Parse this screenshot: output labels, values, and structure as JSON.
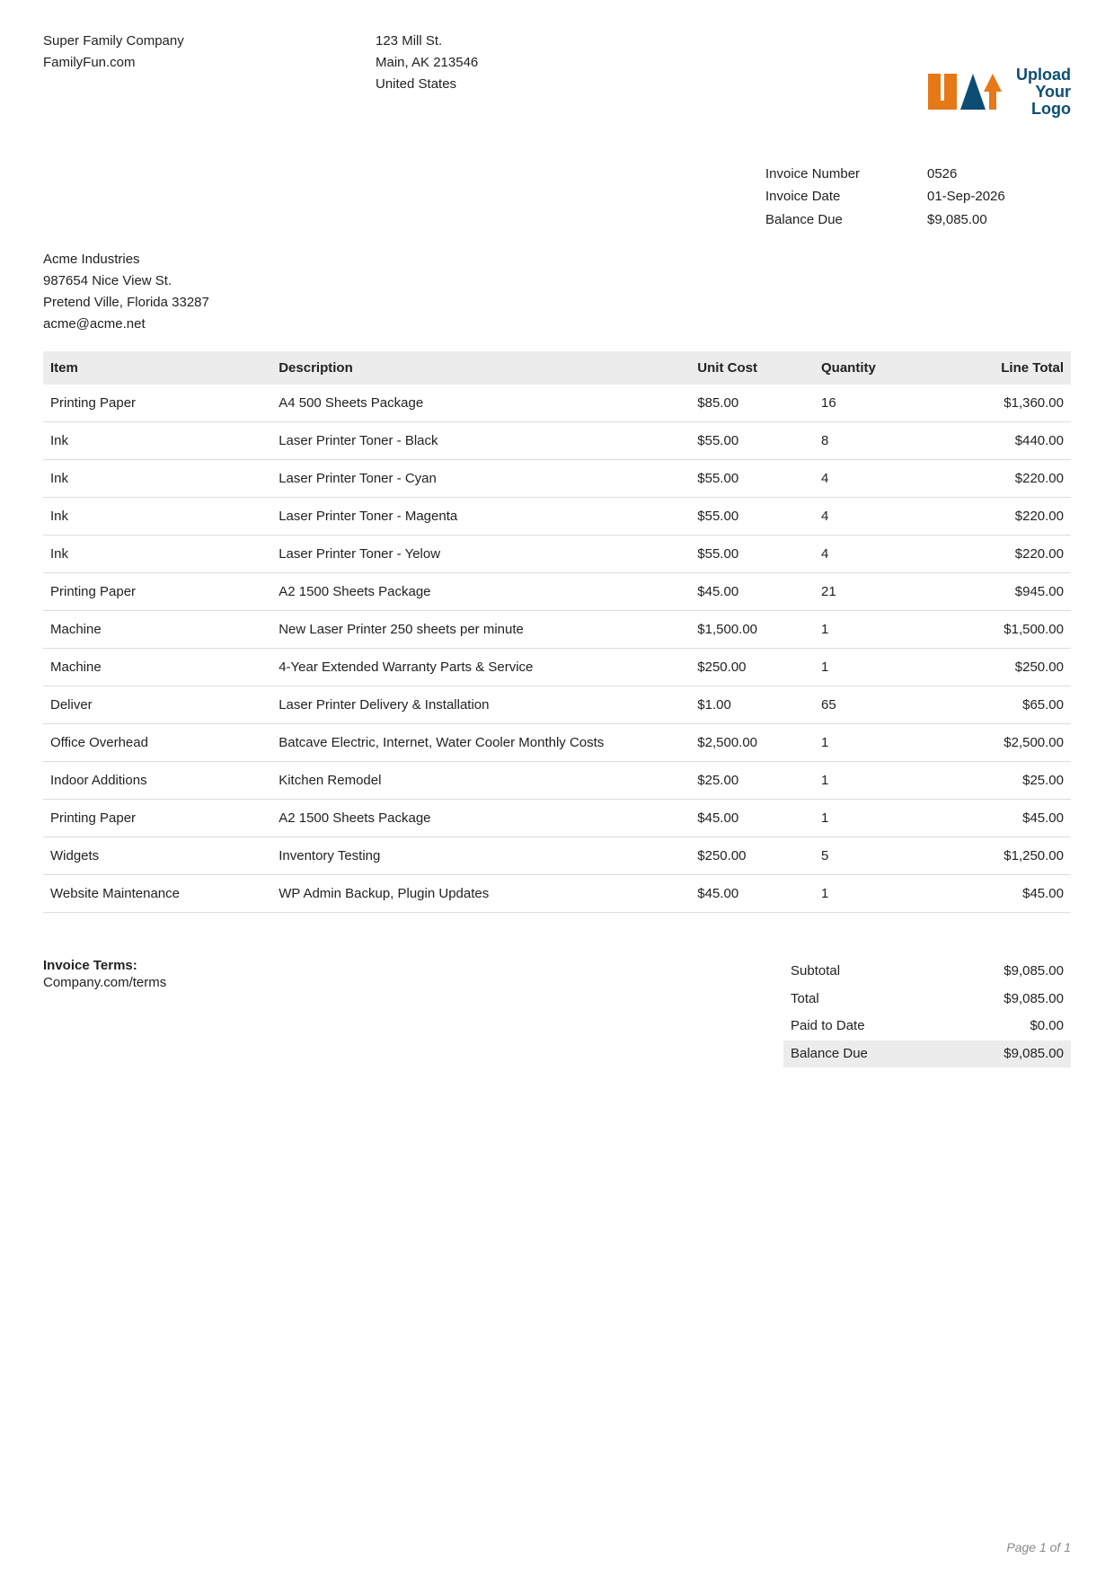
{
  "company": {
    "name": "Super Family Company",
    "website": "FamilyFun.com",
    "addr1": "123 Mill St.",
    "addr2": "Main, AK 213546",
    "country": "United States"
  },
  "logo": {
    "text1": "Upload",
    "text2": "Your",
    "text3": "Logo",
    "color_primary": "#e67817",
    "color_secondary": "#0d4d73"
  },
  "meta": {
    "invoice_number_label": "Invoice Number",
    "invoice_number": "0526",
    "invoice_date_label": "Invoice Date",
    "invoice_date": "01-Sep-2026",
    "balance_due_label": "Balance Due",
    "balance_due": "$9,085.00"
  },
  "billto": {
    "name": "Acme Industries",
    "addr1": "987654 Nice View St.",
    "addr2": "Pretend Ville, Florida 33287",
    "email": "acme@acme.net"
  },
  "table": {
    "headers": {
      "item": "Item",
      "description": "Description",
      "unit_cost": "Unit Cost",
      "quantity": "Quantity",
      "line_total": "Line Total"
    },
    "rows": [
      {
        "item": "Printing Paper",
        "desc": "A4 500 Sheets Package",
        "unit": "$85.00",
        "qty": "16",
        "total": "$1,360.00"
      },
      {
        "item": "Ink",
        "desc": "Laser Printer Toner - Black",
        "unit": "$55.00",
        "qty": "8",
        "total": "$440.00"
      },
      {
        "item": "Ink",
        "desc": "Laser Printer Toner - Cyan",
        "unit": "$55.00",
        "qty": "4",
        "total": "$220.00"
      },
      {
        "item": "Ink",
        "desc": "Laser Printer Toner - Magenta",
        "unit": "$55.00",
        "qty": "4",
        "total": "$220.00"
      },
      {
        "item": "Ink",
        "desc": "Laser Printer Toner - Yelow",
        "unit": "$55.00",
        "qty": "4",
        "total": "$220.00"
      },
      {
        "item": "Printing Paper",
        "desc": "A2 1500 Sheets Package",
        "unit": "$45.00",
        "qty": "21",
        "total": "$945.00"
      },
      {
        "item": "Machine",
        "desc": "New Laser Printer 250 sheets per minute",
        "unit": "$1,500.00",
        "qty": "1",
        "total": "$1,500.00"
      },
      {
        "item": "Machine",
        "desc": "4-Year Extended Warranty Parts & Service",
        "unit": "$250.00",
        "qty": "1",
        "total": "$250.00"
      },
      {
        "item": "Deliver",
        "desc": "Laser Printer Delivery & Installation",
        "unit": "$1.00",
        "qty": "65",
        "total": "$65.00"
      },
      {
        "item": "Office Overhead",
        "desc": "Batcave Electric, Internet, Water Cooler Monthly Costs",
        "unit": "$2,500.00",
        "qty": "1",
        "total": "$2,500.00"
      },
      {
        "item": "Indoor Additions",
        "desc": "Kitchen Remodel",
        "unit": "$25.00",
        "qty": "1",
        "total": "$25.00"
      },
      {
        "item": "Printing Paper",
        "desc": "A2 1500 Sheets Package",
        "unit": "$45.00",
        "qty": "1",
        "total": "$45.00"
      },
      {
        "item": "Widgets",
        "desc": "Inventory Testing",
        "unit": "$250.00",
        "qty": "5",
        "total": "$1,250.00"
      },
      {
        "item": "Website Maintenance",
        "desc": "WP Admin Backup, Plugin Updates",
        "unit": "$45.00",
        "qty": "1",
        "total": "$45.00"
      }
    ]
  },
  "terms": {
    "title": "Invoice Terms:",
    "text": "Company.com/terms"
  },
  "totals": {
    "subtotal_label": "Subtotal",
    "subtotal": "$9,085.00",
    "total_label": "Total",
    "total": "$9,085.00",
    "paid_label": "Paid to Date",
    "paid": "$0.00",
    "balance_label": "Balance Due",
    "balance": "$9,085.00"
  },
  "page": "Page 1 of 1",
  "style": {
    "header_bg": "#ececec",
    "row_border": "#dddddd",
    "text_color": "#222222",
    "muted_color": "#888888"
  }
}
